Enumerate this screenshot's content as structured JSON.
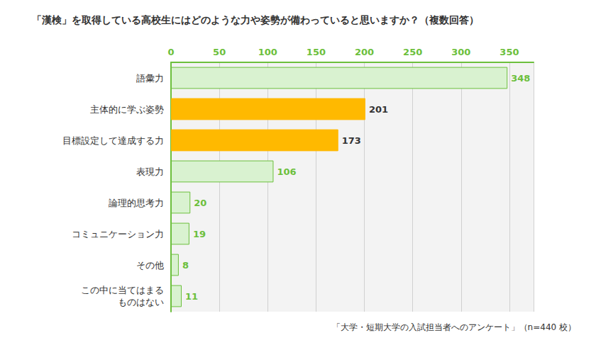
{
  "chart_data": {
    "type": "bar",
    "orientation": "horizontal",
    "title": "「漢検」を取得している高校生にはどのような力や姿勢が備わっていると思いますか？（複数回答）",
    "annotation": "「大学・短期大学の入試担当者へのアンケート」（n=440 校）",
    "categories": [
      "語彙力",
      "主体的に学ぶ姿勢",
      "目標設定して達成する力",
      "表現力",
      "論理的思考力",
      "コミュニケーション力",
      "その他",
      "この中に当てはまる\nものはない"
    ],
    "values": [
      348,
      201,
      173,
      106,
      20,
      19,
      8,
      11
    ],
    "color": "#d9f2d0",
    "colors": [
      "#d9f2d0",
      "#ffb900",
      "#ffb900",
      "#d9f2d0",
      "#d9f2d0",
      "#d9f2d0",
      "#d9f2d0",
      "#d9f2d0"
    ],
    "xlim": [
      0,
      375
    ],
    "xticks": [
      0,
      50,
      100,
      150,
      200,
      250,
      300,
      350
    ],
    "grid": true,
    "data_labels": true
  }
}
